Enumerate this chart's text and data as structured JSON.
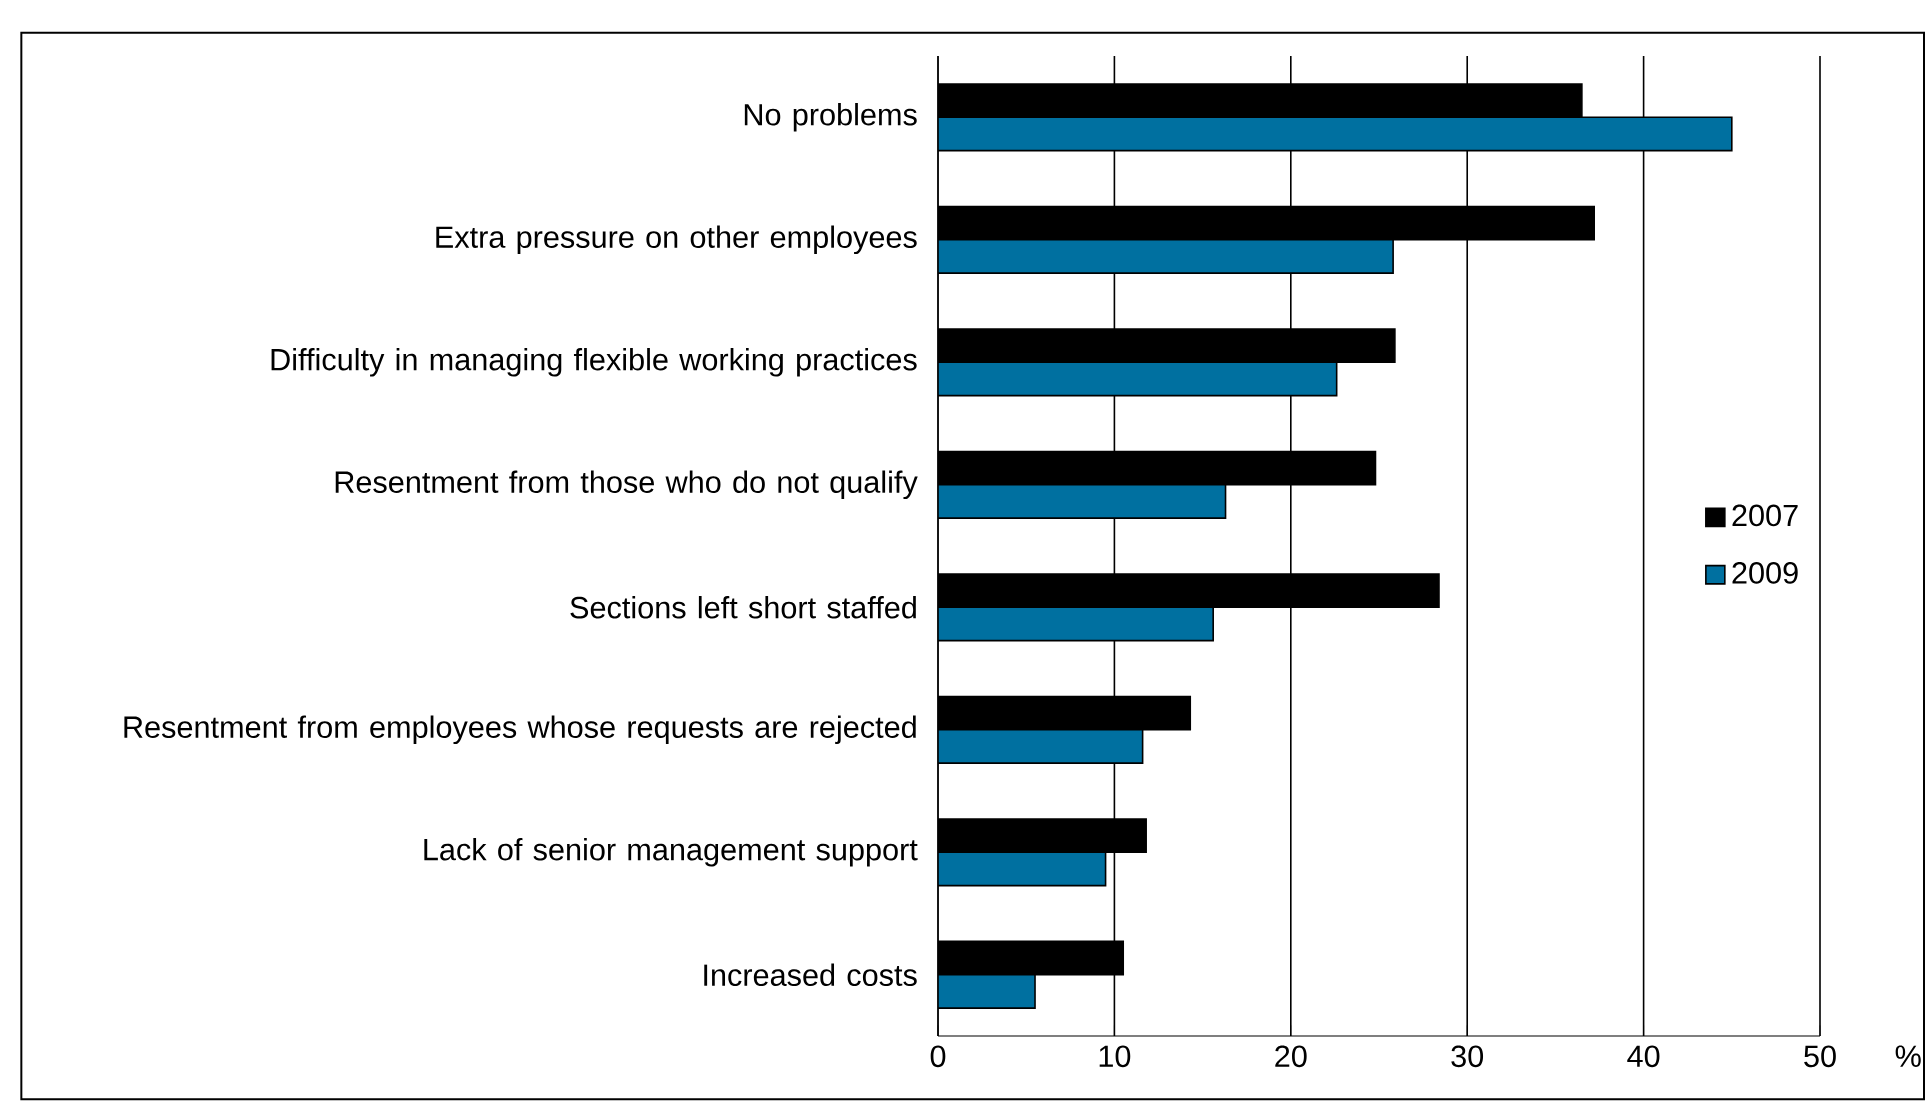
{
  "chart_data": {
    "type": "bar",
    "orientation": "horizontal",
    "xlabel": "%",
    "categories": [
      "No problems",
      "Extra pressure on other employees",
      "Difficulty in managing flexible working practices",
      "Resentment from those who do not qualify",
      "Sections left short staffed",
      "Resentment from employees whose requests are rejected",
      "Lack of senior management support",
      "Increased costs"
    ],
    "series": [
      {
        "name": "2007",
        "color": "#000000",
        "values": [
          36.5,
          37.2,
          25.9,
          24.8,
          28.4,
          14.3,
          11.8,
          10.5
        ]
      },
      {
        "name": "2009",
        "color": "#0070a0",
        "values": [
          45.0,
          25.8,
          22.6,
          16.3,
          15.6,
          11.6,
          9.5,
          5.5
        ]
      }
    ],
    "xlim": [
      0,
      50
    ],
    "xticks": [
      0,
      10,
      20,
      30,
      40,
      50
    ],
    "grid": "x",
    "legend": "right"
  }
}
